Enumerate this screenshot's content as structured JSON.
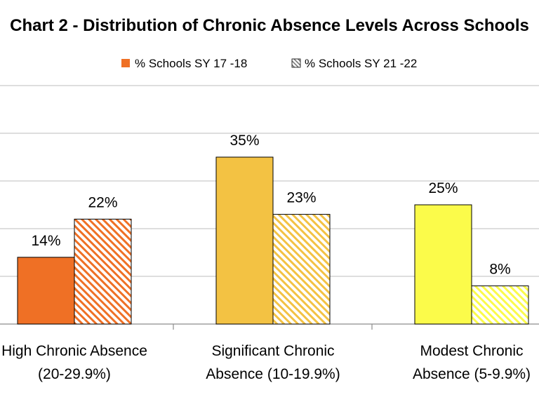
{
  "chart_data": {
    "type": "bar",
    "title": "Chart 2 - Distribution of Chronic Absence Levels Across Schools",
    "categories": [
      [
        "High Chronic Absence",
        "(20-29.9%)"
      ],
      [
        "Significant Chronic",
        "Absence (10-19.9%)"
      ],
      [
        "Modest Chronic",
        "Absence (5-9.9%)"
      ]
    ],
    "series": [
      {
        "name": "% Schools SY 17 -18",
        "values": [
          14,
          35,
          25
        ],
        "labels": [
          "14%",
          "35%",
          "25%"
        ],
        "pattern": "solid"
      },
      {
        "name": "% Schools SY 21 -22",
        "values": [
          22,
          23,
          8
        ],
        "labels": [
          "22%",
          "23%",
          "8%"
        ],
        "pattern": "hatched"
      }
    ],
    "bar_colors": [
      "#ef7025",
      "#f3c243",
      "#fbfb4a"
    ],
    "ylim": [
      0,
      50
    ],
    "grid": true,
    "legend_position": "top",
    "xlabel": "",
    "ylabel": ""
  }
}
